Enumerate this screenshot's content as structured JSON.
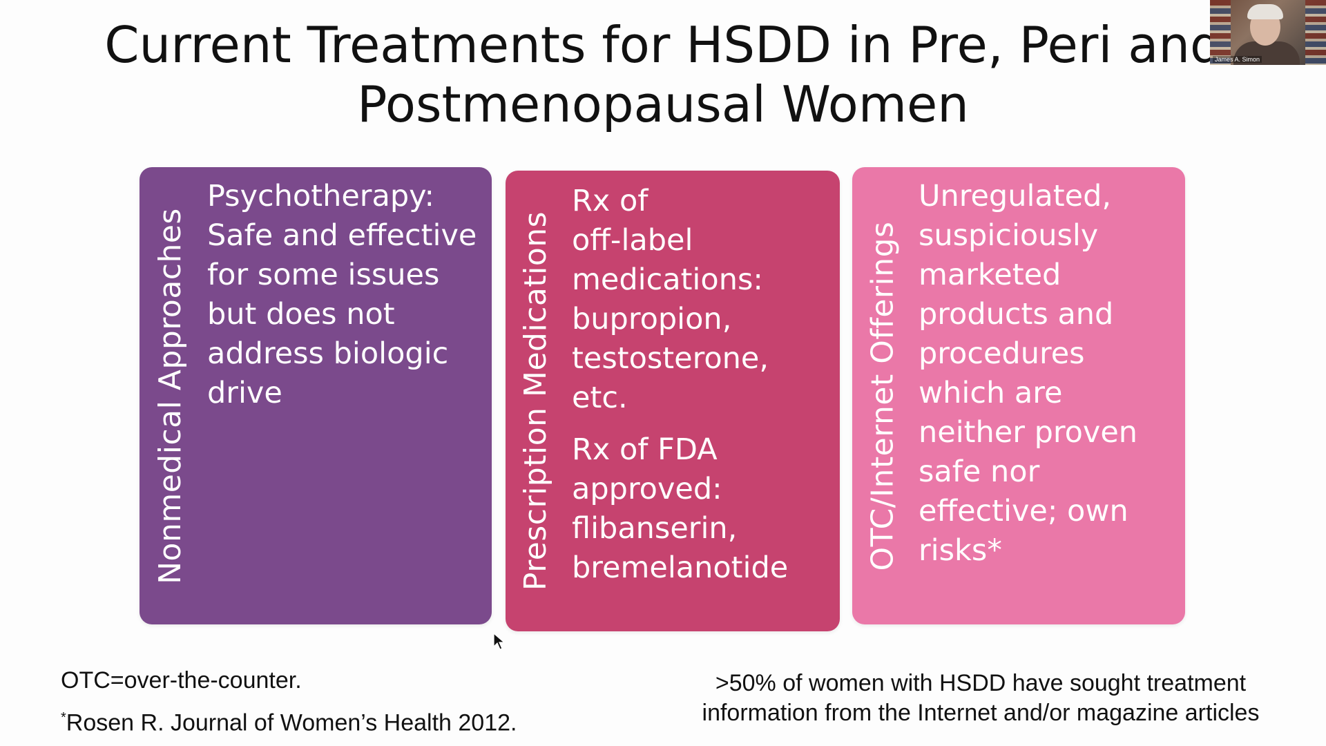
{
  "slide": {
    "title": "Current Treatments for HSDD in Pre, Peri and Postmenopausal Women",
    "boxes": [
      {
        "side_label": "Nonmedical Approaches",
        "body": "Psychotherapy:\nSafe and effective\nfor some issues\nbut does not\naddress biologic\ndrive",
        "color": "#7B4A8C"
      },
      {
        "side_label": "Prescription Medications",
        "body_1": "Rx of\noff-label\nmedications:\nbupropion,\ntestosterone,\netc.",
        "body_2": "Rx of FDA\napproved:\nflibanserin,\nbremelanotide",
        "color": "#C6436F"
      },
      {
        "side_label": "OTC/Internet Offerings",
        "body": "Unregulated,\nsuspiciously\nmarketed\nproducts and\nprocedures\nwhich are\nneither proven\nsafe nor\neffective; own\nrisks*",
        "color": "#EA78A8"
      }
    ],
    "footnote_abbrev": "OTC=over-the-counter.",
    "footnote_ref_mark": "*",
    "footnote_ref": "Rosen R. Journal of Women’s Health 2012.",
    "stat_line_1": ">50% of women with HSDD have sought treatment",
    "stat_line_2": "information from the Internet and/or magazine articles"
  },
  "video": {
    "participant_name": "James A. Simon"
  }
}
